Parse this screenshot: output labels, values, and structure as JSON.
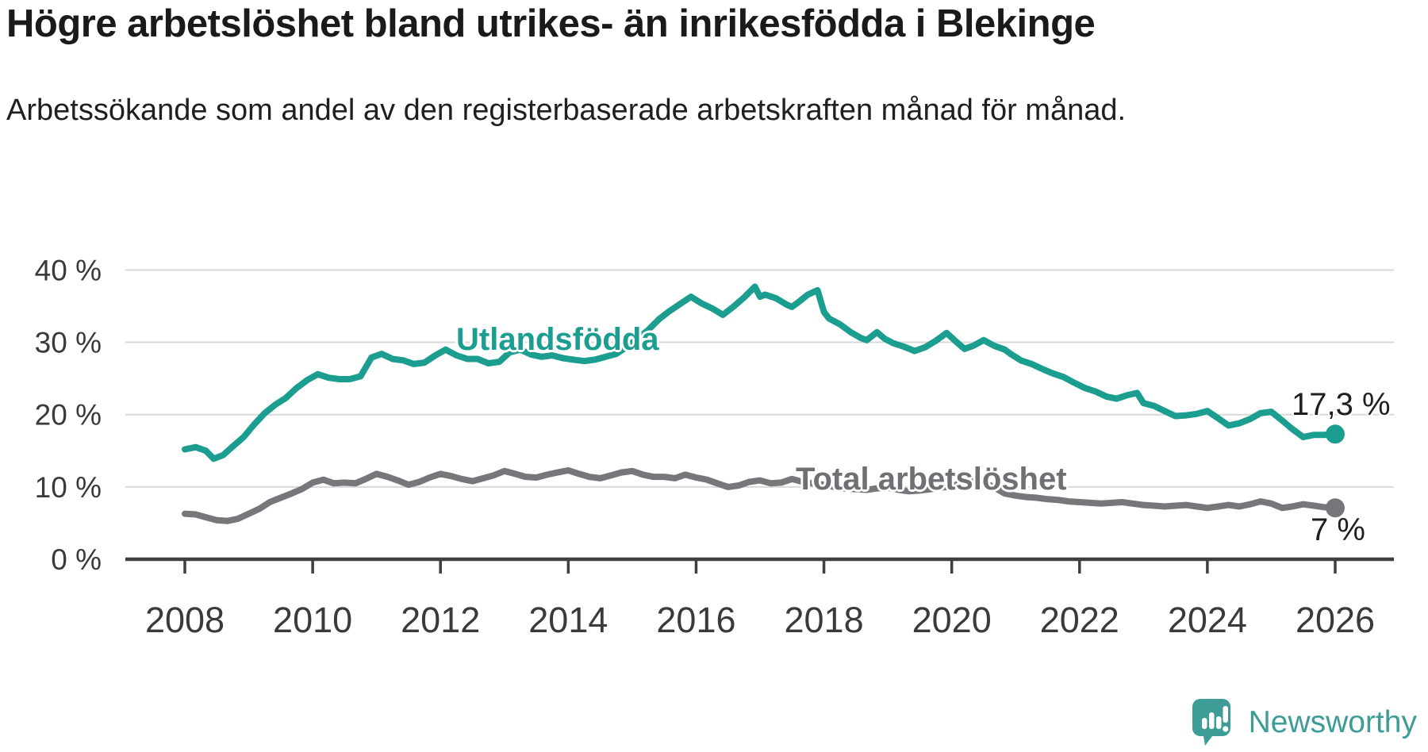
{
  "title": "Högre arbetslöshet bland utrikes- än inrikesfödda i Blekinge",
  "subtitle": "Arbetssökande som andel av den registerbaserade arbetskraften månad för månad.",
  "logo": {
    "text": "Newsworthy"
  },
  "chart_data": {
    "type": "line",
    "title": "Högre arbetslöshet bland utrikes- än inrikesfödda i Blekinge",
    "xlabel": "",
    "ylabel": "",
    "grid": true,
    "x_range": [
      2008,
      2026
    ],
    "y_range": [
      0,
      40
    ],
    "x_ticks": [
      {
        "value": 2008,
        "label": "2008"
      },
      {
        "value": 2010,
        "label": "2010"
      },
      {
        "value": 2012,
        "label": "2012"
      },
      {
        "value": 2014,
        "label": "2014"
      },
      {
        "value": 2016,
        "label": "2016"
      },
      {
        "value": 2018,
        "label": "2018"
      },
      {
        "value": 2020,
        "label": "2020"
      },
      {
        "value": 2022,
        "label": "2022"
      },
      {
        "value": 2024,
        "label": "2024"
      },
      {
        "value": 2026,
        "label": "2026"
      }
    ],
    "y_ticks": [
      {
        "value": 0,
        "label": "0 %"
      },
      {
        "value": 10,
        "label": "10 %"
      },
      {
        "value": 20,
        "label": "20 %"
      },
      {
        "value": 30,
        "label": "30 %"
      },
      {
        "value": 40,
        "label": "40 %"
      }
    ],
    "colors": {
      "utlandsfodda": "#1b9e8f",
      "total": "#77777b",
      "gridline": "#d9d9d9",
      "axis": "#3f3f3f",
      "tick_text": "#3a3a3a"
    },
    "series": [
      {
        "name": "Utlandsfödda",
        "color": "#1b9e8f",
        "end_label": "17,3 %",
        "end_value": 17.3,
        "points": [
          [
            2008.0,
            15.2
          ],
          [
            2008.17,
            15.5
          ],
          [
            2008.33,
            15.0
          ],
          [
            2008.45,
            13.9
          ],
          [
            2008.6,
            14.4
          ],
          [
            2008.75,
            15.6
          ],
          [
            2008.92,
            16.9
          ],
          [
            2009.08,
            18.6
          ],
          [
            2009.25,
            20.2
          ],
          [
            2009.42,
            21.4
          ],
          [
            2009.58,
            22.3
          ],
          [
            2009.75,
            23.7
          ],
          [
            2009.92,
            24.8
          ],
          [
            2010.08,
            25.6
          ],
          [
            2010.25,
            25.1
          ],
          [
            2010.42,
            24.9
          ],
          [
            2010.58,
            24.9
          ],
          [
            2010.75,
            25.3
          ],
          [
            2010.92,
            27.9
          ],
          [
            2011.08,
            28.4
          ],
          [
            2011.25,
            27.7
          ],
          [
            2011.42,
            27.5
          ],
          [
            2011.58,
            27.0
          ],
          [
            2011.75,
            27.2
          ],
          [
            2011.92,
            28.2
          ],
          [
            2012.08,
            29.0
          ],
          [
            2012.25,
            28.2
          ],
          [
            2012.42,
            27.7
          ],
          [
            2012.58,
            27.7
          ],
          [
            2012.75,
            27.1
          ],
          [
            2012.92,
            27.3
          ],
          [
            2013.08,
            28.6
          ],
          [
            2013.25,
            29.0
          ],
          [
            2013.42,
            28.3
          ],
          [
            2013.58,
            28.0
          ],
          [
            2013.75,
            28.2
          ],
          [
            2013.92,
            27.8
          ],
          [
            2014.08,
            27.6
          ],
          [
            2014.25,
            27.4
          ],
          [
            2014.42,
            27.6
          ],
          [
            2014.58,
            28.0
          ],
          [
            2014.75,
            28.4
          ],
          [
            2014.92,
            29.4
          ],
          [
            2015.08,
            30.5
          ],
          [
            2015.25,
            31.7
          ],
          [
            2015.42,
            33.2
          ],
          [
            2015.58,
            34.3
          ],
          [
            2015.75,
            35.3
          ],
          [
            2015.92,
            36.3
          ],
          [
            2016.08,
            35.4
          ],
          [
            2016.25,
            34.7
          ],
          [
            2016.42,
            33.8
          ],
          [
            2016.58,
            34.9
          ],
          [
            2016.75,
            36.2
          ],
          [
            2016.92,
            37.7
          ],
          [
            2017.0,
            36.3
          ],
          [
            2017.08,
            36.6
          ],
          [
            2017.25,
            36.1
          ],
          [
            2017.42,
            35.2
          ],
          [
            2017.5,
            34.9
          ],
          [
            2017.58,
            35.4
          ],
          [
            2017.75,
            36.6
          ],
          [
            2017.9,
            37.2
          ],
          [
            2018.0,
            34.2
          ],
          [
            2018.08,
            33.3
          ],
          [
            2018.25,
            32.5
          ],
          [
            2018.42,
            31.4
          ],
          [
            2018.58,
            30.6
          ],
          [
            2018.67,
            30.3
          ],
          [
            2018.83,
            31.4
          ],
          [
            2018.95,
            30.5
          ],
          [
            2019.08,
            29.9
          ],
          [
            2019.25,
            29.4
          ],
          [
            2019.42,
            28.8
          ],
          [
            2019.58,
            29.3
          ],
          [
            2019.75,
            30.2
          ],
          [
            2019.92,
            31.3
          ],
          [
            2020.08,
            30.0
          ],
          [
            2020.2,
            29.1
          ],
          [
            2020.33,
            29.5
          ],
          [
            2020.5,
            30.3
          ],
          [
            2020.67,
            29.5
          ],
          [
            2020.83,
            29.0
          ],
          [
            2020.92,
            28.4
          ],
          [
            2021.08,
            27.5
          ],
          [
            2021.25,
            27.0
          ],
          [
            2021.42,
            26.3
          ],
          [
            2021.58,
            25.7
          ],
          [
            2021.75,
            25.2
          ],
          [
            2021.92,
            24.4
          ],
          [
            2022.08,
            23.7
          ],
          [
            2022.25,
            23.2
          ],
          [
            2022.42,
            22.5
          ],
          [
            2022.58,
            22.2
          ],
          [
            2022.75,
            22.7
          ],
          [
            2022.9,
            23.0
          ],
          [
            2023.0,
            21.6
          ],
          [
            2023.17,
            21.2
          ],
          [
            2023.33,
            20.5
          ],
          [
            2023.5,
            19.8
          ],
          [
            2023.67,
            19.9
          ],
          [
            2023.83,
            20.1
          ],
          [
            2024.0,
            20.5
          ],
          [
            2024.17,
            19.5
          ],
          [
            2024.33,
            18.5
          ],
          [
            2024.5,
            18.8
          ],
          [
            2024.67,
            19.4
          ],
          [
            2024.83,
            20.2
          ],
          [
            2025.0,
            20.4
          ],
          [
            2025.17,
            19.2
          ],
          [
            2025.33,
            18.0
          ],
          [
            2025.5,
            16.9
          ],
          [
            2025.67,
            17.2
          ],
          [
            2025.83,
            17.2
          ],
          [
            2026.0,
            17.3
          ]
        ]
      },
      {
        "name": "Total arbetslöshet",
        "color": "#77777b",
        "end_label": "7 %",
        "end_value": 7,
        "points": [
          [
            2008.0,
            6.3
          ],
          [
            2008.17,
            6.2
          ],
          [
            2008.33,
            5.8
          ],
          [
            2008.5,
            5.4
          ],
          [
            2008.67,
            5.3
          ],
          [
            2008.83,
            5.6
          ],
          [
            2009.0,
            6.3
          ],
          [
            2009.17,
            7.0
          ],
          [
            2009.33,
            7.9
          ],
          [
            2009.5,
            8.5
          ],
          [
            2009.67,
            9.1
          ],
          [
            2009.83,
            9.7
          ],
          [
            2010.0,
            10.6
          ],
          [
            2010.17,
            11.0
          ],
          [
            2010.33,
            10.5
          ],
          [
            2010.5,
            10.6
          ],
          [
            2010.67,
            10.5
          ],
          [
            2010.83,
            11.1
          ],
          [
            2011.0,
            11.8
          ],
          [
            2011.17,
            11.4
          ],
          [
            2011.33,
            10.9
          ],
          [
            2011.5,
            10.3
          ],
          [
            2011.67,
            10.7
          ],
          [
            2011.83,
            11.3
          ],
          [
            2012.0,
            11.8
          ],
          [
            2012.17,
            11.5
          ],
          [
            2012.33,
            11.1
          ],
          [
            2012.5,
            10.8
          ],
          [
            2012.67,
            11.2
          ],
          [
            2012.83,
            11.6
          ],
          [
            2013.0,
            12.2
          ],
          [
            2013.17,
            11.8
          ],
          [
            2013.33,
            11.4
          ],
          [
            2013.5,
            11.3
          ],
          [
            2013.67,
            11.7
          ],
          [
            2013.83,
            12.0
          ],
          [
            2014.0,
            12.3
          ],
          [
            2014.17,
            11.8
          ],
          [
            2014.33,
            11.4
          ],
          [
            2014.5,
            11.2
          ],
          [
            2014.67,
            11.6
          ],
          [
            2014.83,
            12.0
          ],
          [
            2015.0,
            12.2
          ],
          [
            2015.17,
            11.7
          ],
          [
            2015.33,
            11.4
          ],
          [
            2015.5,
            11.4
          ],
          [
            2015.67,
            11.2
          ],
          [
            2015.83,
            11.7
          ],
          [
            2016.0,
            11.3
          ],
          [
            2016.17,
            11.0
          ],
          [
            2016.33,
            10.5
          ],
          [
            2016.5,
            10.0
          ],
          [
            2016.67,
            10.2
          ],
          [
            2016.83,
            10.7
          ],
          [
            2017.0,
            10.9
          ],
          [
            2017.17,
            10.5
          ],
          [
            2017.33,
            10.6
          ],
          [
            2017.5,
            11.1
          ],
          [
            2017.67,
            10.7
          ],
          [
            2017.83,
            10.5
          ],
          [
            2018.0,
            10.3
          ],
          [
            2018.17,
            10.0
          ],
          [
            2018.33,
            9.8
          ],
          [
            2018.5,
            9.7
          ],
          [
            2018.67,
            9.6
          ],
          [
            2018.83,
            9.8
          ],
          [
            2019.0,
            9.9
          ],
          [
            2019.17,
            9.6
          ],
          [
            2019.33,
            9.4
          ],
          [
            2019.5,
            9.5
          ],
          [
            2019.67,
            9.7
          ],
          [
            2019.83,
            9.9
          ],
          [
            2020.0,
            10.1
          ],
          [
            2020.17,
            10.6
          ],
          [
            2020.33,
            11.0
          ],
          [
            2020.5,
            10.7
          ],
          [
            2020.67,
            9.9
          ],
          [
            2020.83,
            9.1
          ],
          [
            2021.0,
            8.8
          ],
          [
            2021.17,
            8.6
          ],
          [
            2021.33,
            8.5
          ],
          [
            2021.5,
            8.3
          ],
          [
            2021.67,
            8.2
          ],
          [
            2021.83,
            8.0
          ],
          [
            2022.0,
            7.9
          ],
          [
            2022.17,
            7.8
          ],
          [
            2022.33,
            7.7
          ],
          [
            2022.5,
            7.8
          ],
          [
            2022.67,
            7.9
          ],
          [
            2022.83,
            7.7
          ],
          [
            2023.0,
            7.5
          ],
          [
            2023.17,
            7.4
          ],
          [
            2023.33,
            7.3
          ],
          [
            2023.5,
            7.4
          ],
          [
            2023.67,
            7.5
          ],
          [
            2023.83,
            7.3
          ],
          [
            2024.0,
            7.1
          ],
          [
            2024.17,
            7.3
          ],
          [
            2024.33,
            7.5
          ],
          [
            2024.5,
            7.3
          ],
          [
            2024.67,
            7.6
          ],
          [
            2024.83,
            8.0
          ],
          [
            2025.0,
            7.7
          ],
          [
            2025.17,
            7.1
          ],
          [
            2025.33,
            7.3
          ],
          [
            2025.5,
            7.6
          ],
          [
            2025.67,
            7.4
          ],
          [
            2025.83,
            7.2
          ],
          [
            2026.0,
            7.1
          ]
        ]
      }
    ]
  }
}
